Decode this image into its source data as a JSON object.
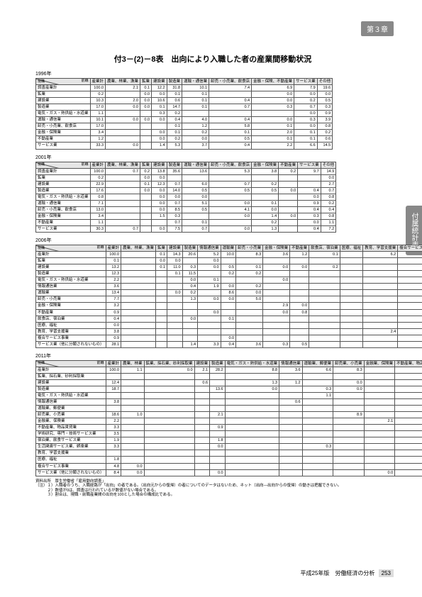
{
  "chapter_badge": "第３章",
  "side_tab": "付属統計表",
  "title": "付3－(2)－8表　出向により入職した者の産業間移動状況",
  "footer": {
    "text": "平成25年版　労働経済の分析",
    "page": "253"
  },
  "tables": [
    {
      "year": "1996年",
      "diag": {
        "top": "前職",
        "left": "現職"
      },
      "cols": [
        "産業計",
        "農業、林業、漁業",
        "鉱業",
        "建設業",
        "製造業",
        "運輸・通信業",
        "卸売・小売業、飲食店",
        "金融・保険、不動産業",
        "サービス業",
        "その他"
      ],
      "rows": [
        {
          "label": "調査産業計",
          "v": [
            "100.0",
            "2.1",
            "0.1",
            "12.2",
            "31.8",
            "10.1",
            "7.4",
            "6.9",
            "7.9",
            "19.6"
          ]
        },
        {
          "label": "鉱業",
          "v": [
            "0.2",
            "",
            "0.0",
            "0.0",
            "0.1",
            "0.1",
            "",
            "0.0",
            "0.0",
            "0.0"
          ]
        },
        {
          "label": "建設業",
          "v": [
            "10.3",
            "2.0",
            "0.0",
            "10.6",
            "0.6",
            "0.1",
            "0.4",
            "0.0",
            "0.2",
            "0.5"
          ]
        },
        {
          "label": "製造業",
          "v": [
            "17.0",
            "0.0",
            "0.0",
            "0.1",
            "14.7",
            "0.1",
            "0.7",
            "0.3",
            "0.7",
            "0.3"
          ]
        },
        {
          "label": "電気・ガス・熱供給・水道業",
          "v": [
            "1.1",
            "",
            "",
            "0.3",
            "0.2",
            "",
            "",
            "",
            "0.0",
            "0.9"
          ]
        },
        {
          "label": "運輸・通信業",
          "v": [
            "10.1",
            "0.0",
            "0.0",
            "0.0",
            "0.4",
            "4.0",
            "0.4",
            "0.0",
            "0.3",
            "3.9"
          ]
        },
        {
          "label": "卸売・小売業、飲食店",
          "v": [
            "17.0",
            "",
            "",
            "",
            "0.1",
            "1.2",
            "5.8",
            "0.1",
            "0.0",
            "0.8"
          ]
        },
        {
          "label": "金融・保険業",
          "v": [
            "3.4",
            "",
            "",
            "0.0",
            "0.1",
            "0.2",
            "0.1",
            "2.0",
            "0.1",
            "0.2"
          ]
        },
        {
          "label": "不動産業",
          "v": [
            "1.2",
            "",
            "",
            "0.0",
            "0.2",
            "0.0",
            "0.5",
            "0.1",
            "0.1",
            "0.6"
          ]
        },
        {
          "label": "サービス業",
          "v": [
            "33.3",
            "0.0",
            "",
            "1.4",
            "5.3",
            "3.7",
            "0.4",
            "2.2",
            "6.6",
            "14.5"
          ]
        }
      ]
    },
    {
      "year": "2001年",
      "diag": {
        "top": "前職",
        "left": "現職"
      },
      "cols": [
        "産業計",
        "農業、林業、漁業",
        "鉱業",
        "建設業",
        "製造業",
        "運輸・通信業",
        "卸売・小売業、飲食店",
        "金融・保険業",
        "不動産業",
        "サービス業",
        "その他"
      ],
      "rows": [
        {
          "label": "調査産業計",
          "v": [
            "100.0",
            "0.7",
            "0.2",
            "13.8",
            "35.6",
            "13.6",
            "5.3",
            "3.8",
            "0.2",
            "9.7",
            "14.9"
          ]
        },
        {
          "label": "鉱業",
          "v": [
            "0.2",
            "",
            "0.0",
            "0.0",
            "",
            "",
            "",
            "",
            "",
            "",
            "0.0"
          ]
        },
        {
          "label": "建設業",
          "v": [
            "22.9",
            "",
            "0.1",
            "12.3",
            "0.7",
            "6.0",
            "0.7",
            "0.2",
            "",
            "",
            "2.7"
          ]
        },
        {
          "label": "製造業",
          "v": [
            "17.6",
            "",
            "0.0",
            "0.0",
            "14.0",
            "0.5",
            "0.5",
            "0.5",
            "0.0",
            "0.4",
            "0.7"
          ]
        },
        {
          "label": "電気・ガス・熱供給・水道業",
          "v": [
            "0.8",
            "",
            "",
            "0.0",
            "0.0",
            "0.0",
            "",
            "",
            "",
            "0.0",
            "0.8"
          ]
        },
        {
          "label": "運輸・通信業",
          "v": [
            "7.1",
            "",
            "",
            "0.0",
            "0.7",
            "5.1",
            "0.0",
            "0.1",
            "",
            "0.9",
            "0.2"
          ]
        },
        {
          "label": "卸売・小売業、飲食店",
          "v": [
            "13.0",
            "",
            "",
            "0.0",
            "8.5",
            "0.5",
            "4.1",
            "0.0",
            "",
            "0.4",
            "0.4"
          ]
        },
        {
          "label": "金融・保険業",
          "v": [
            "3.4",
            "",
            "",
            "1.5",
            "0.3",
            "",
            "0.0",
            "1.4",
            "0.0",
            "0.3",
            "0.8"
          ]
        },
        {
          "label": "不動産業",
          "v": [
            "1.1",
            "",
            "",
            "",
            "0.7",
            "0.1",
            "",
            "0.2",
            "",
            "0.0",
            "1.1"
          ]
        },
        {
          "label": "サービス業",
          "v": [
            "30.3",
            "0.7",
            "",
            "0.0",
            "7.5",
            "0.7",
            "0.0",
            "1.3",
            "",
            "0.4",
            "7.2"
          ]
        }
      ]
    },
    {
      "year": "2006年",
      "diag": {
        "top": "前職",
        "left": "現職"
      },
      "cols": [
        "産業計",
        "農業、林業、漁業",
        "鉱業",
        "建設業",
        "製造業",
        "情報通信業",
        "運輸業",
        "卸売・小売業",
        "金融・保険業",
        "不動産業",
        "飲食店、宿泊業",
        "医療、福祉",
        "教育、学習支援業",
        "複合サービス事業",
        "サービス業",
        "その他"
      ],
      "rows": [
        {
          "label": "産業計",
          "v": [
            "100.0",
            "",
            "0.1",
            "14.3",
            "20.6",
            "5.2",
            "10.0",
            "8.3",
            "3.6",
            "1.2",
            "0.1",
            "",
            "6.2",
            "6.4",
            "17.5",
            "0.7"
          ]
        },
        {
          "label": "鉱業",
          "v": [
            "0.1",
            "",
            "0.0",
            "0.0",
            "",
            "0.0",
            "",
            "",
            "",
            "",
            "",
            "",
            "",
            "",
            "0.0",
            "0.0"
          ]
        },
        {
          "label": "建設業",
          "v": [
            "13.2",
            "",
            "0.1",
            "11.0",
            "0.3",
            "0.0",
            "0.5",
            "0.1",
            "0.0",
            "0.0",
            "0.2",
            "",
            "",
            "0.1",
            "0.0",
            "0.3"
          ]
        },
        {
          "label": "製造業",
          "v": [
            "12.3",
            "",
            "",
            "0.1",
            "11.5",
            "",
            "0.2",
            "0.2",
            "",
            "",
            "",
            "",
            "",
            "",
            "0.2",
            "0.1"
          ]
        },
        {
          "label": "電気・ガス・熱供給・水道業",
          "v": [
            "2.2",
            "",
            "",
            "",
            "0.0",
            "0.1",
            "",
            "",
            "0.0",
            "",
            "",
            "",
            "",
            "",
            "0.1",
            "1.7"
          ]
        },
        {
          "label": "情報通信業",
          "v": [
            "3.6",
            "",
            "",
            "",
            "0.4",
            "1.9",
            "0.0",
            "0.2",
            "",
            "",
            "",
            "",
            "",
            "",
            "0.3",
            "0.8"
          ]
        },
        {
          "label": "運輸業",
          "v": [
            "13.4",
            "",
            "",
            "0.0",
            "0.2",
            "",
            "8.6",
            "0.0",
            "",
            "",
            "",
            "",
            "",
            "",
            "0.0",
            "4.5"
          ]
        },
        {
          "label": "卸売・小売業",
          "v": [
            "7.7",
            "",
            "",
            "",
            "1.3",
            "0.0",
            "0.0",
            "5.0",
            "",
            "",
            "",
            "",
            "",
            "0.1",
            "",
            "1.2"
          ]
        },
        {
          "label": "金融・保険業",
          "v": [
            "3.2",
            "",
            "",
            "",
            "",
            "",
            "",
            "",
            "2.9",
            "0.0",
            "",
            "",
            "",
            "",
            "",
            "0.3"
          ]
        },
        {
          "label": "不動産業",
          "v": [
            "0.9",
            "",
            "",
            "",
            "",
            "0.0",
            "",
            "",
            "0.0",
            "0.8",
            "",
            "",
            "",
            "",
            "0.0",
            "1.2"
          ]
        },
        {
          "label": "飲食店、宿泊業",
          "v": [
            "0.4",
            "",
            "",
            "",
            "0.0",
            "",
            "0.1",
            "",
            "",
            "",
            "",
            "",
            "",
            "",
            "",
            "0.0"
          ]
        },
        {
          "label": "医療、福祉",
          "v": [
            "0.0",
            "",
            "",
            "",
            "",
            "",
            "",
            "",
            "",
            "",
            "",
            "",
            "",
            "",
            "",
            "0.0"
          ]
        },
        {
          "label": "教育、学習支援業",
          "v": [
            "3.8",
            "",
            "",
            "",
            "",
            "",
            "",
            "",
            "",
            "",
            "",
            "",
            "2.4",
            "3.1",
            "",
            "0.1"
          ]
        },
        {
          "label": "複合サービス事業",
          "v": [
            "0.9",
            "",
            "",
            "",
            "",
            "",
            "0.0",
            "",
            "",
            "",
            "",
            "",
            "",
            "",
            "0.1",
            "0.2"
          ]
        },
        {
          "label": "サービス業（他に分類されないもの）",
          "v": [
            "28.1",
            "",
            "",
            "",
            "1.4",
            "3.3",
            "0.4",
            "3.6",
            "0.3",
            "0.5",
            "",
            "",
            "",
            "3.3",
            "0.0",
            "5.5"
          ]
        }
      ]
    },
    {
      "year": "2011年",
      "diag": {
        "top": "前職",
        "left": "現職"
      },
      "cols": [
        "産業計",
        "農業、林業",
        "鉱業、採石業、砂利採取業",
        "建設業",
        "製造業",
        "電気・ガス・熱供給・水道業",
        "情報通信業",
        "運輸業、郵便業",
        "卸売業、小売業",
        "金融業、保険業",
        "不動産業、物品賃貸業",
        "学術研究、専門・技術サービス業",
        "宿泊業、飲食サービス業",
        "生活関連サービス業、娯楽業",
        "教育、学習支援業",
        "医療、福祉",
        "複合サービス事業",
        "サービス業",
        "その他"
      ],
      "rows": [
        {
          "label": "産業計",
          "v": [
            "100.0",
            "1.1",
            "0.0",
            "2.1",
            "28.2",
            "8.8",
            "3.6",
            "6.6",
            "8.3",
            "",
            "",
            "",
            "",
            "",
            "15.1",
            "1.4",
            "",
            "0.5",
            "6.5"
          ]
        },
        {
          "label": "鉱業、採石業、砂利採取業",
          "v": [
            "",
            "",
            "",
            "",
            "",
            "",
            "",
            "",
            "",
            "",
            "",
            "",
            "",
            "",
            "",
            "",
            "",
            "",
            ""
          ]
        },
        {
          "label": "建設業",
          "v": [
            "12.4",
            "",
            "",
            "0.6",
            "",
            "1.3",
            "1.2",
            "",
            "0.0",
            "",
            "0.2",
            "",
            "",
            "",
            "0.0",
            "0.3",
            "",
            "0.0",
            ""
          ]
        },
        {
          "label": "製造業",
          "v": [
            "18.7",
            "",
            "",
            "",
            "13.6",
            "0.0",
            "",
            "0.3",
            "0.0",
            "",
            "",
            "",
            "",
            "",
            "",
            "",
            "",
            "0.0",
            "0.1"
          ]
        },
        {
          "label": "電気・ガス・熱供給・水道業",
          "v": [
            "",
            "",
            "",
            "",
            "",
            "",
            "",
            "1.1",
            "",
            "",
            "",
            "",
            "",
            "",
            "",
            "",
            "",
            "",
            "1.0"
          ]
        },
        {
          "label": "情報通信業",
          "v": [
            "3.8",
            "",
            "",
            "",
            "",
            "",
            "0.6",
            "",
            "",
            "",
            "",
            "",
            "",
            "",
            "",
            "0.1",
            "",
            "",
            ""
          ]
        },
        {
          "label": "運輸業、郵便業",
          "v": [
            "",
            "",
            "",
            "",
            "",
            "",
            "",
            "",
            "",
            "",
            "",
            "",
            "",
            "",
            "",
            "",
            "",
            "0.1",
            "0.2"
          ]
        },
        {
          "label": "卸売業、小売業",
          "v": [
            "18.6",
            "1.0",
            "",
            "",
            "2.1",
            "",
            "",
            "",
            "8.9",
            "",
            "",
            "",
            "",
            "0.1",
            "",
            "1.4",
            "",
            "",
            "0.1"
          ]
        },
        {
          "label": "金融業、保険業",
          "v": [
            "2.2",
            "",
            "",
            "",
            "",
            "",
            "",
            "",
            "",
            "2.1",
            "",
            "",
            "",
            "",
            "",
            "",
            "",
            "",
            ""
          ]
        },
        {
          "label": "不動産業、物品賃貸業",
          "v": [
            "3.3",
            "",
            "",
            "",
            "0.9",
            "",
            "",
            "",
            "",
            "",
            "",
            "",
            "",
            "",
            "",
            "",
            "",
            "0.3",
            "0.8"
          ]
        },
        {
          "label": "学術研究、専門・技術サービス業",
          "v": [
            "3.5",
            "",
            "",
            "",
            "",
            "",
            "",
            "",
            "",
            "",
            "",
            "",
            "",
            "",
            "",
            "0.2",
            "",
            "0.0",
            "2.0"
          ]
        },
        {
          "label": "宿泊業、飲食サービス業",
          "v": [
            "1.9",
            "",
            "",
            "",
            "1.8",
            "",
            "",
            "",
            "",
            "",
            "",
            "",
            "",
            "",
            "0.2",
            "0.1",
            "",
            "",
            "0.2"
          ]
        },
        {
          "label": "生活関連サービス業、娯楽業",
          "v": [
            "3.3",
            "",
            "",
            "",
            "0.0",
            "",
            "",
            "0.3",
            "",
            "",
            "",
            "",
            "",
            "",
            "",
            "3.0",
            "",
            "",
            "0.0"
          ]
        },
        {
          "label": "教育、学習支援業",
          "v": [
            "",
            "",
            "",
            "",
            "",
            "",
            "",
            "",
            "",
            "",
            "",
            "",
            "",
            "",
            "",
            "",
            "",
            "",
            ""
          ]
        },
        {
          "label": "医療、福祉",
          "v": [
            "1.8",
            "",
            "",
            "",
            "",
            "",
            "",
            "",
            "",
            "",
            "",
            "",
            "",
            "",
            "1.2",
            "",
            "",
            "",
            ""
          ]
        },
        {
          "label": "複合サービス事業",
          "v": [
            "4.8",
            "0.0",
            "",
            "",
            "",
            "",
            "",
            "",
            "",
            "",
            "",
            "",
            "",
            "",
            "",
            "",
            "0.4",
            "",
            "0.5"
          ]
        },
        {
          "label": "サービス業（他に分類されないもの）",
          "v": [
            "8.4",
            "0.0",
            "",
            "",
            "0.0",
            "",
            "",
            "",
            "",
            "0.0",
            "",
            "",
            "",
            "",
            "",
            "0.0",
            "",
            "1.4",
            "1.3"
          ]
        }
      ]
    }
  ],
  "notes": [
    "資料出所　厚生労働省「雇用動向調査」",
    "（注）１）入職者のうち、入職経路が「出向」の者である。（出向元からの復帰）の者についてのデータはないため、ネット（出向―出向からの復帰）の動きは把握できない。",
    "　　　２）数値が0は、調査は行われているが数値がない場合である。",
    "　　　３）割合は、現職・前職産業間の出向を100とした場合の構成比である。"
  ]
}
